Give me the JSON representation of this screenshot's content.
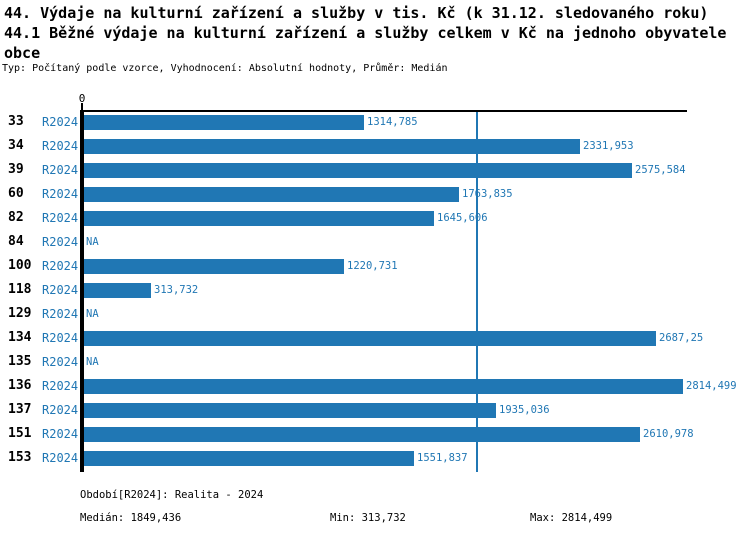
{
  "header": {
    "title_line1": "44. Výdaje na kulturní zařízení a služby v tis. Kč (k 31.12. sledovaného roku)",
    "title_line2": "44.1 Běžné výdaje na kulturní zařízení a služby celkem v Kč na jednoho obyvatele obce",
    "subtitle": "Typ: Počítaný podle vzorce, Vyhodnocení: Absolutní hodnoty, Průměr: Medián"
  },
  "colors": {
    "bar": "#2077b4",
    "blue_text": "#2077b4",
    "median_line": "#2077b4",
    "axis": "#000000"
  },
  "chart_data": {
    "type": "bar",
    "orientation": "horizontal",
    "title": "44.1 Běžné výdaje na kulturní zařízení a služby celkem v Kč na jednoho obyvatele obce",
    "xlabel": "",
    "ylabel": "",
    "xlim": [
      0,
      2840
    ],
    "x_tick_labels": [
      "0"
    ],
    "grid": false,
    "legend": false,
    "series_name": "R2024",
    "categories": [
      "33",
      "34",
      "39",
      "60",
      "82",
      "84",
      "100",
      "118",
      "129",
      "134",
      "135",
      "136",
      "137",
      "151",
      "153"
    ],
    "values": [
      1314.785,
      2331.953,
      2575.584,
      1763.835,
      1645.606,
      null,
      1220.731,
      313.732,
      null,
      2687.25,
      null,
      2814.499,
      1935.036,
      2610.978,
      1551.837
    ],
    "median_value": 1849.436,
    "rows": [
      {
        "id": "33",
        "period": "R2024",
        "value": 1314.785,
        "label": "1314,785"
      },
      {
        "id": "34",
        "period": "R2024",
        "value": 2331.953,
        "label": "2331,953"
      },
      {
        "id": "39",
        "period": "R2024",
        "value": 2575.584,
        "label": "2575,584"
      },
      {
        "id": "60",
        "period": "R2024",
        "value": 1763.835,
        "label": "1763,835"
      },
      {
        "id": "82",
        "period": "R2024",
        "value": 1645.606,
        "label": "1645,606"
      },
      {
        "id": "84",
        "period": "R2024",
        "value": null,
        "label": "NA"
      },
      {
        "id": "100",
        "period": "R2024",
        "value": 1220.731,
        "label": "1220,731"
      },
      {
        "id": "118",
        "period": "R2024",
        "value": 313.732,
        "label": "313,732"
      },
      {
        "id": "129",
        "period": "R2024",
        "value": null,
        "label": "NA"
      },
      {
        "id": "134",
        "period": "R2024",
        "value": 2687.25,
        "label": "2687,25"
      },
      {
        "id": "135",
        "period": "R2024",
        "value": null,
        "label": "NA"
      },
      {
        "id": "136",
        "period": "R2024",
        "value": 2814.499,
        "label": "2814,499"
      },
      {
        "id": "137",
        "period": "R2024",
        "value": 1935.036,
        "label": "1935,036"
      },
      {
        "id": "151",
        "period": "R2024",
        "value": 2610.978,
        "label": "2610,978"
      },
      {
        "id": "153",
        "period": "R2024",
        "value": 1551.837,
        "label": "1551,837"
      }
    ]
  },
  "footer": {
    "period_label": "Období[R2024]: Realita - 2024",
    "median_label": "Medián: 1849,436",
    "min_label": "Min: 313,732",
    "max_label": "Max: 2814,499"
  }
}
